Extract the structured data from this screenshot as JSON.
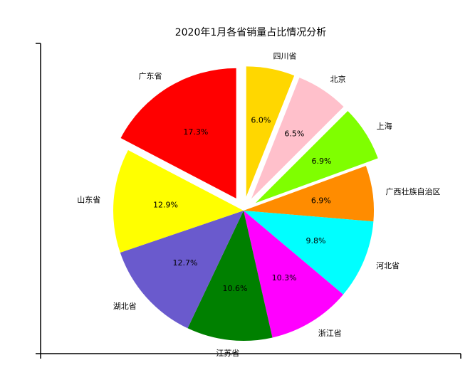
{
  "chart_data": {
    "type": "pie",
    "title": "2020年1月各省销量占比情况分析",
    "start_angle_deg": 0,
    "direction": "clockwise",
    "slices": [
      {
        "name": "四川省",
        "value": 6.0,
        "label": "6.0%",
        "color": "#FFD700",
        "exploded": true
      },
      {
        "name": "北京",
        "value": 6.5,
        "label": "6.5%",
        "color": "#FFC0CB",
        "exploded": true
      },
      {
        "name": "上海",
        "value": 6.9,
        "label": "6.9%",
        "color": "#7FFF00",
        "exploded": true
      },
      {
        "name": "广西壮族自治区",
        "value": 6.9,
        "label": "6.9%",
        "color": "#FF8C00",
        "exploded": false
      },
      {
        "name": "河北省",
        "value": 9.8,
        "label": "9.8%",
        "color": "#00FFFF",
        "exploded": false
      },
      {
        "name": "浙江省",
        "value": 10.3,
        "label": "10.3%",
        "color": "#FF00FF",
        "exploded": false
      },
      {
        "name": "江苏省",
        "value": 10.6,
        "label": "10.6%",
        "color": "#008000",
        "exploded": false
      },
      {
        "name": "湖北省",
        "value": 12.7,
        "label": "12.7%",
        "color": "#6A5ACD",
        "exploded": false
      },
      {
        "name": "山东省",
        "value": 12.9,
        "label": "12.9%",
        "color": "#FFFF00",
        "exploded": false
      },
      {
        "name": "广东省",
        "value": 17.3,
        "label": "17.3%",
        "color": "#FF0000",
        "exploded": true
      }
    ]
  }
}
